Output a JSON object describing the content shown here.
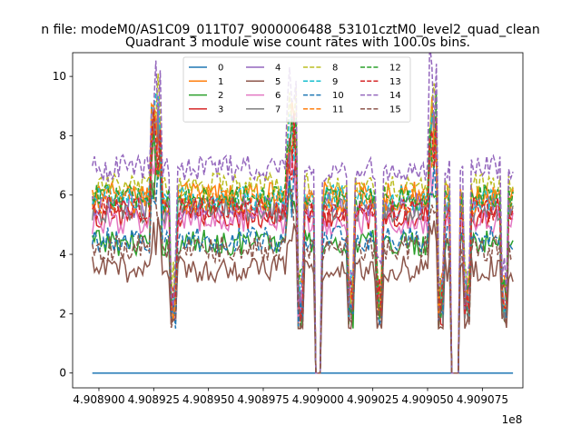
{
  "chart_data": {
    "type": "line",
    "suptitle": "n file: modeM0/AS1C09_011T07_9000006488_53101cztM0_level2_quad_clean",
    "title": "Quadrant 3 module wise count rates with 100.0s bins.",
    "xlabel": "",
    "ylabel": "",
    "x_offset_label": "1e8",
    "xlim": [
      490888800,
      490909350
    ],
    "ylim": [
      -0.5,
      10.8
    ],
    "xticks": [
      490890000,
      490892500,
      490895000,
      490897500,
      490900000,
      490902500,
      490905000,
      490907500
    ],
    "xtick_labels": [
      "4.908900",
      "4.908925",
      "4.908950",
      "4.908975",
      "4.909000",
      "4.909025",
      "4.909050",
      "4.909075"
    ],
    "yticks": [
      0,
      2,
      4,
      6,
      8,
      10
    ],
    "ytick_labels": [
      "0",
      "2",
      "4",
      "6",
      "8",
      "10"
    ],
    "grid": false,
    "legend_position": "top-center",
    "legend_columns": 4,
    "bin_seconds": 100,
    "time_start": 490889700,
    "time_end": 490908900,
    "gaps": [
      [
        490899900,
        490900100
      ],
      [
        490906100,
        490906400
      ]
    ],
    "dips": [
      490893400,
      490899200,
      490901500,
      490902800,
      490905600,
      490906800,
      490908500
    ],
    "series": [
      {
        "name": "0",
        "color": "#1f77b4",
        "dash": "solid",
        "mean": 0.0
      },
      {
        "name": "1",
        "color": "#ff7f0e",
        "dash": "solid",
        "mean": 6.0
      },
      {
        "name": "2",
        "color": "#2ca02c",
        "dash": "solid",
        "mean": 4.4
      },
      {
        "name": "3",
        "color": "#d62728",
        "dash": "solid",
        "mean": 5.3
      },
      {
        "name": "4",
        "color": "#9467bd",
        "dash": "solid",
        "mean": 5.6
      },
      {
        "name": "5",
        "color": "#8c564b",
        "dash": "solid",
        "mean": 3.5
      },
      {
        "name": "6",
        "color": "#e377c2",
        "dash": "solid",
        "mean": 5.1
      },
      {
        "name": "7",
        "color": "#7f7f7f",
        "dash": "solid",
        "mean": 5.5
      },
      {
        "name": "8",
        "color": "#bcbd22",
        "dash": "dashed",
        "mean": 6.3
      },
      {
        "name": "9",
        "color": "#17becf",
        "dash": "dashed",
        "mean": 5.9
      },
      {
        "name": "10",
        "color": "#1f77b4",
        "dash": "dashed",
        "mean": 4.5
      },
      {
        "name": "11",
        "color": "#ff7f0e",
        "dash": "dashed",
        "mean": 5.8
      },
      {
        "name": "12",
        "color": "#2ca02c",
        "dash": "dashed",
        "mean": 5.9
      },
      {
        "name": "13",
        "color": "#d62728",
        "dash": "dashed",
        "mean": 5.5
      },
      {
        "name": "14",
        "color": "#9467bd",
        "dash": "dashed",
        "mean": 6.9
      },
      {
        "name": "15",
        "color": "#8c564b",
        "dash": "dashed",
        "mean": 4.2
      }
    ]
  }
}
